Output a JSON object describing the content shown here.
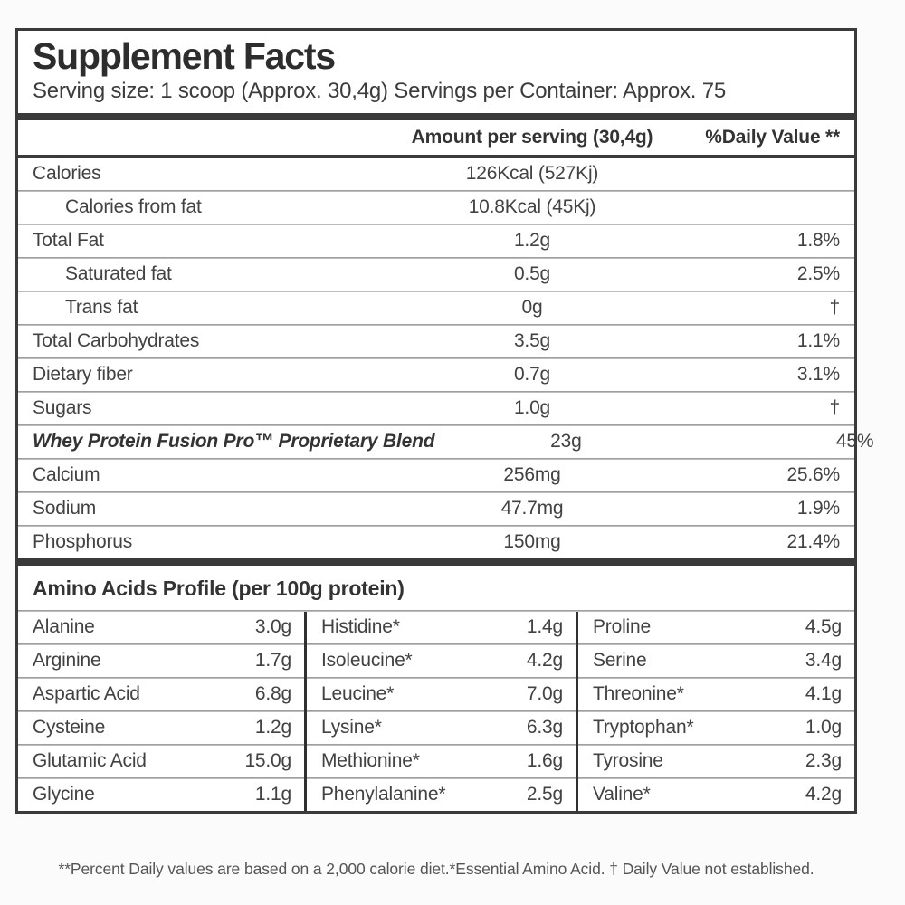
{
  "label": {
    "title": "Supplement Facts",
    "serving_line": "Serving size: 1 scoop (Approx. 30,4g) Servings per Container: Approx. 75",
    "columns": {
      "amount": "Amount per serving (30,4g)",
      "daily_value": "%Daily Value **"
    },
    "nutrients": [
      {
        "name": "Calories",
        "amount": "126Kcal (527Kj)",
        "dv": "",
        "indent": false,
        "emphasis": false
      },
      {
        "name": "Calories from fat",
        "amount": "10.8Kcal (45Kj)",
        "dv": "",
        "indent": true,
        "emphasis": false
      },
      {
        "name": "Total Fat",
        "amount": "1.2g",
        "dv": "1.8%",
        "indent": false,
        "emphasis": false
      },
      {
        "name": "Saturated fat",
        "amount": "0.5g",
        "dv": "2.5%",
        "indent": true,
        "emphasis": false
      },
      {
        "name": "Trans fat",
        "amount": "0g",
        "dv": "†",
        "indent": true,
        "emphasis": false
      },
      {
        "name": "Total Carbohydrates",
        "amount": "3.5g",
        "dv": "1.1%",
        "indent": false,
        "emphasis": false
      },
      {
        "name": "Dietary fiber",
        "amount": "0.7g",
        "dv": "3.1%",
        "indent": false,
        "emphasis": false
      },
      {
        "name": "Sugars",
        "amount": "1.0g",
        "dv": "†",
        "indent": false,
        "emphasis": false
      },
      {
        "name": "Whey Protein Fusion Pro™ Proprietary Blend",
        "amount": "23g",
        "dv": "45%",
        "indent": false,
        "emphasis": true
      },
      {
        "name": "Calcium",
        "amount": "256mg",
        "dv": "25.6%",
        "indent": false,
        "emphasis": false
      },
      {
        "name": "Sodium",
        "amount": "47.7mg",
        "dv": "1.9%",
        "indent": false,
        "emphasis": false
      },
      {
        "name": "Phosphorus",
        "amount": "150mg",
        "dv": "21.4%",
        "indent": false,
        "emphasis": false
      }
    ],
    "amino": {
      "heading": "Amino Acids Profile (per 100g protein)",
      "columns": [
        [
          {
            "name": "Alanine",
            "value": "3.0g"
          },
          {
            "name": "Arginine",
            "value": "1.7g"
          },
          {
            "name": "Aspartic Acid",
            "value": "6.8g"
          },
          {
            "name": "Cysteine",
            "value": "1.2g"
          },
          {
            "name": "Glutamic Acid",
            "value": "15.0g"
          },
          {
            "name": "Glycine",
            "value": "1.1g"
          }
        ],
        [
          {
            "name": "Histidine*",
            "value": "1.4g"
          },
          {
            "name": "Isoleucine*",
            "value": "4.2g"
          },
          {
            "name": "Leucine*",
            "value": "7.0g"
          },
          {
            "name": "Lysine*",
            "value": "6.3g"
          },
          {
            "name": "Methionine*",
            "value": "1.6g"
          },
          {
            "name": "Phenylalanine*",
            "value": "2.5g"
          }
        ],
        [
          {
            "name": "Proline",
            "value": "4.5g"
          },
          {
            "name": "Serine",
            "value": "3.4g"
          },
          {
            "name": "Threonine*",
            "value": "4.1g"
          },
          {
            "name": "Tryptophan*",
            "value": "1.0g"
          },
          {
            "name": "Tyrosine",
            "value": "2.3g"
          },
          {
            "name": "Valine*",
            "value": "4.2g"
          }
        ]
      ]
    },
    "footnote": "**Percent Daily values are based on a 2,000 calorie diet.*Essential Amino Acid. † Daily Value not established."
  }
}
